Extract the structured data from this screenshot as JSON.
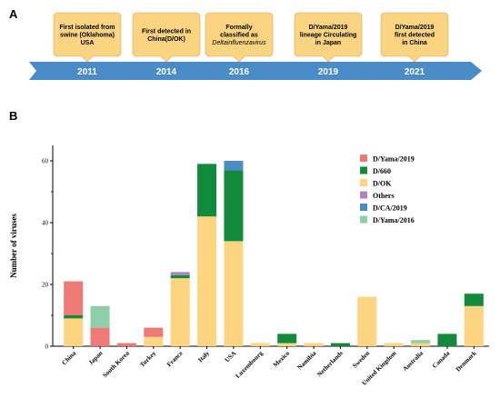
{
  "panel_a": {
    "label": "A",
    "timeline_color": "#4a8cc8",
    "callout_color": "#fbd482",
    "events": [
      {
        "year": "2011",
        "lines": [
          "First isolated  from",
          "swine (Oklahoma)",
          "USA"
        ],
        "italic": [
          false,
          false,
          false
        ]
      },
      {
        "year": "2014",
        "lines": [
          "First detected in",
          "China(D/OK)"
        ],
        "italic": [
          false,
          false
        ]
      },
      {
        "year": "2016",
        "lines": [
          "Formally",
          "classified as",
          "Deltainfluenzavirus"
        ],
        "italic": [
          false,
          false,
          true
        ]
      },
      {
        "year": "2019",
        "lines": [
          "D/Yama/2019",
          "lineage Circulating",
          "in Japan"
        ],
        "italic": [
          false,
          false,
          false
        ]
      },
      {
        "year": "2021",
        "lines": [
          "D/Yama/2019",
          "first detected",
          "in China"
        ],
        "italic": [
          false,
          false,
          false
        ]
      }
    ]
  },
  "panel_b": {
    "label": "B"
  },
  "chart_data": {
    "type": "bar",
    "stacked": true,
    "ylabel": "Number of viruses",
    "xlabel": "",
    "ylim": [
      0,
      65
    ],
    "yticks": [
      0,
      20,
      40,
      60
    ],
    "grid": false,
    "legend_position": "top-right",
    "categories": [
      "China",
      "Japan",
      "South Korea",
      "Turkey",
      "France",
      "Italy",
      "USA",
      "Luxembourg",
      "Mexico",
      "Namibia",
      "Netherlands",
      "Sweden",
      "United Kingdom",
      "Australia",
      "Canada",
      "Denmark"
    ],
    "series": [
      {
        "name": "D/OK",
        "color": "#fdd581",
        "values": [
          9,
          0,
          0,
          3,
          22,
          42,
          34,
          1,
          1,
          1,
          0,
          16,
          1,
          1,
          0,
          13
        ]
      },
      {
        "name": "D/660",
        "color": "#128a3b",
        "values": [
          1,
          0,
          0,
          0,
          1,
          17,
          23,
          0,
          3,
          0,
          1,
          0,
          0,
          0,
          4,
          4
        ]
      },
      {
        "name": "D/Yama/2019",
        "color": "#ee7a76",
        "values": [
          11,
          6,
          1,
          3,
          0,
          0,
          0,
          0,
          0,
          0,
          0,
          0,
          0,
          0,
          0,
          0
        ]
      },
      {
        "name": "Others",
        "color": "#b080c0",
        "values": [
          0,
          0,
          0,
          0,
          1,
          0,
          0,
          0,
          0,
          0,
          0,
          0,
          0,
          0,
          0,
          0
        ]
      },
      {
        "name": "D/CA/2019",
        "color": "#4a8cc8",
        "values": [
          0,
          0,
          0,
          0,
          0,
          0,
          3,
          0,
          0,
          0,
          0,
          0,
          0,
          0,
          0,
          0
        ]
      },
      {
        "name": "D/Yama/2016",
        "color": "#8ccfa8",
        "values": [
          0,
          7,
          0,
          0,
          0,
          0,
          0,
          0,
          0,
          0,
          0,
          0,
          0,
          1,
          0,
          0
        ]
      }
    ],
    "legend_order": [
      "D/Yama/2019",
      "D/660",
      "D/OK",
      "Others",
      "D/CA/2019",
      "D/Yama/2016"
    ]
  }
}
